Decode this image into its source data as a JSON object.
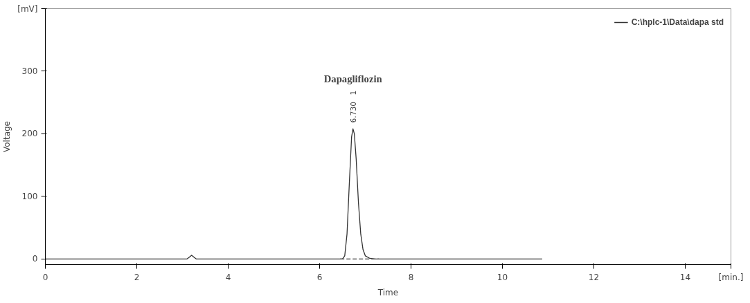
{
  "chart_data": {
    "type": "line",
    "xlabel": "Time",
    "ylabel": "Voltage",
    "xlim": [
      0,
      15
    ],
    "ylim": [
      -9,
      400
    ],
    "xticks": [
      0,
      2,
      4,
      6,
      8,
      10,
      12,
      14,
      {
        "value": 15,
        "label": "[min.]"
      }
    ],
    "yticks": [
      0,
      100,
      200,
      300,
      {
        "value": 400,
        "label": "[mV]"
      }
    ],
    "grid": false,
    "legend": "top right",
    "line_style": "solid",
    "series": [
      {
        "name": "C:\\hplc-1\\Data\\dapa std",
        "color": "#333333",
        "x": [
          0,
          3.1,
          3.15,
          3.2,
          3.25,
          3.3,
          3.35,
          6.45,
          6.5,
          6.55,
          6.6,
          6.65,
          6.7,
          6.73,
          6.76,
          6.8,
          6.85,
          6.9,
          6.95,
          7.0,
          7.1,
          7.2,
          10.87
        ],
        "values": [
          0,
          0,
          3,
          6,
          3,
          0,
          0,
          0,
          0,
          5,
          40,
          120,
          195,
          208,
          200,
          160,
          90,
          40,
          15,
          5,
          1,
          0,
          0
        ]
      },
      {
        "color": "#333333",
        "line_style": "dashed",
        "x": [
          6.45,
          7.3
        ],
        "values": [
          0,
          0
        ]
      }
    ],
    "annotations": [
      "Dapagliflozin",
      {
        "text": "6.730",
        "x": 6.73,
        "y": 208
      },
      "1"
    ]
  }
}
